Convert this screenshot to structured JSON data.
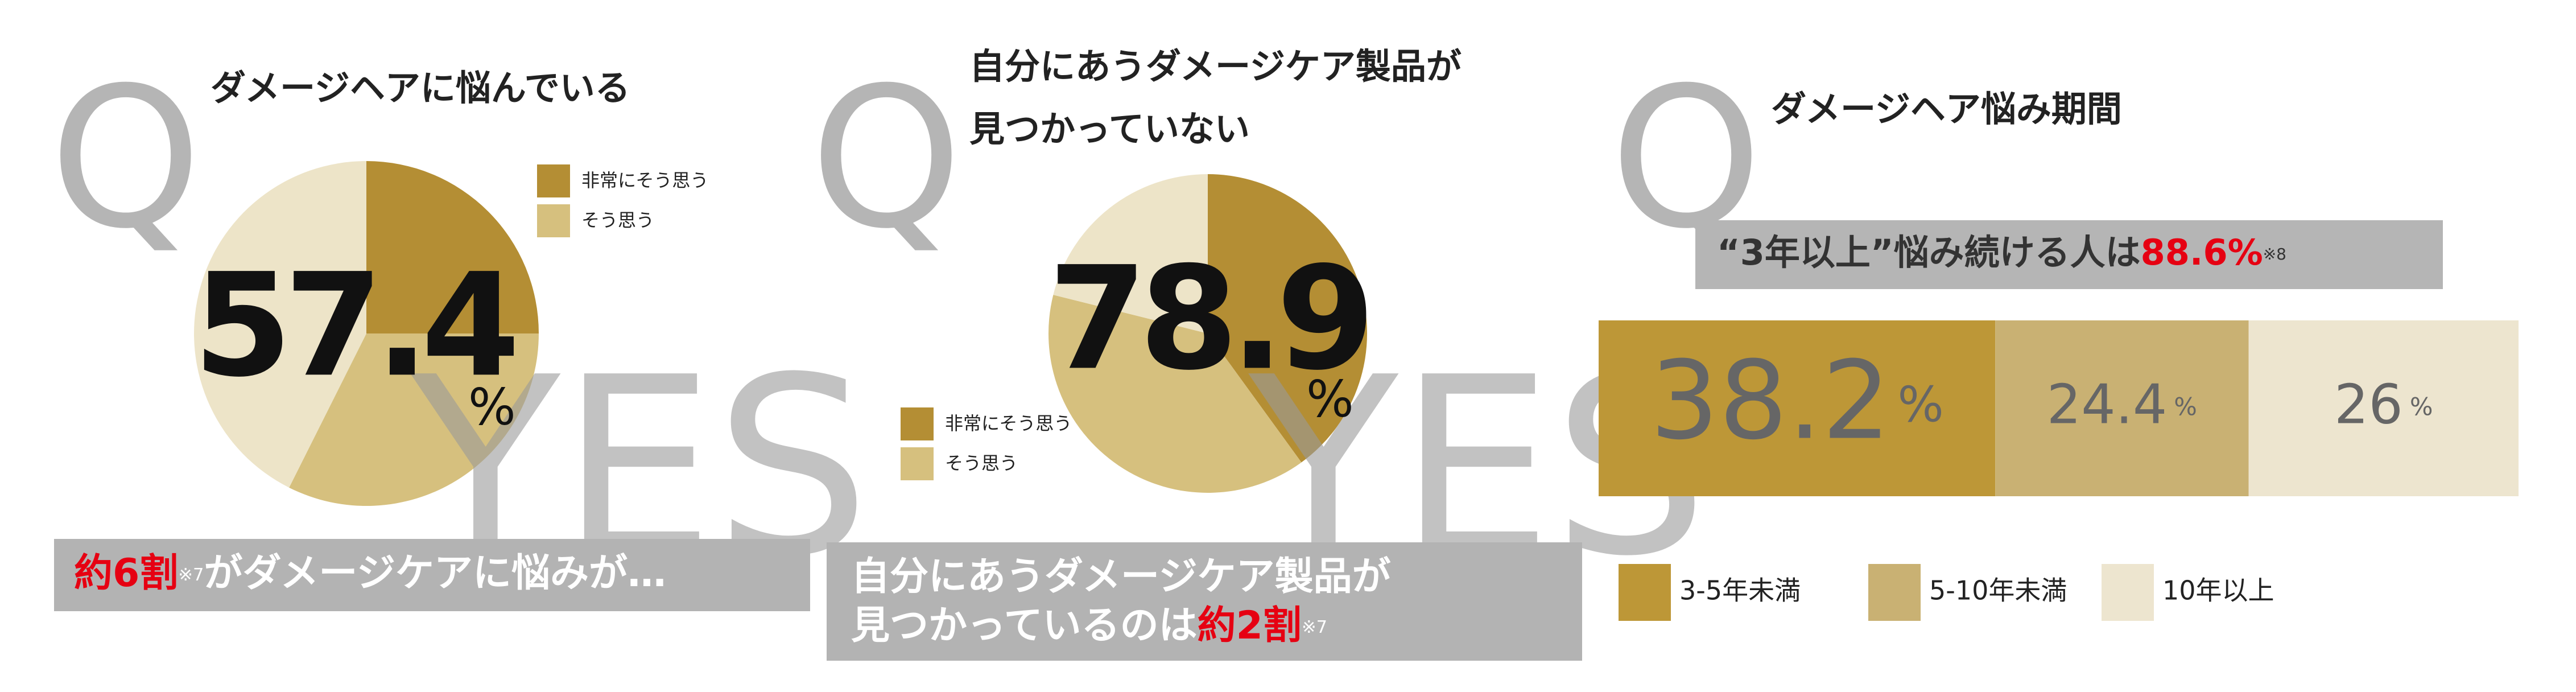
{
  "chart_data": [
    {
      "type": "pie",
      "q": "Q",
      "title_lines": [
        "ダメージヘアに悩んでいる"
      ],
      "categories": [
        "非常にそう思う",
        "そう思う",
        null
      ],
      "values": [
        25,
        32.4,
        42.6
      ],
      "colors": [
        "#b48e34",
        "#d6c07e",
        "#ede4c8"
      ],
      "center_value": 57.4,
      "unit": "%",
      "watermark": "YES",
      "legend": "top-right",
      "footer": [
        [
          {
            "text": "約6割",
            "color": "#e60012"
          },
          {
            "text": "※7",
            "note": true
          },
          {
            "text": "がダメージケアに悩みが…"
          }
        ]
      ]
    },
    {
      "type": "pie",
      "q": "Q",
      "title_lines": [
        "自分にあうダメージケア製品が",
        "見つかっていない"
      ],
      "categories": [
        "非常にそう思う",
        "そう思う",
        null
      ],
      "values": [
        40,
        38.9,
        21.1
      ],
      "colors": [
        "#b48e34",
        "#d6c07e",
        "#ede4c8"
      ],
      "center_value": 78.9,
      "unit": "%",
      "watermark": "YES",
      "legend": "bottom-left",
      "footer": [
        [
          {
            "text": "自分にあうダメージケア製品が"
          }
        ],
        [
          {
            "text": "見つかっているのは"
          },
          {
            "text": "約2割",
            "color": "#e60012"
          },
          {
            "text": "※7",
            "note": true
          }
        ]
      ]
    },
    {
      "type": "stacked-bar",
      "q": "Q",
      "title_lines": [
        "ダメージヘア悩み期間"
      ],
      "banner": [
        {
          "text": "“3年以上”悩み続ける人は"
        },
        {
          "text": "88.6%",
          "color": "#e60012"
        },
        {
          "text": "※8",
          "note": true
        }
      ],
      "series": [
        {
          "name": "3-5年未満",
          "color": "#bd9737",
          "values": [
            38.2
          ]
        },
        {
          "name": "5-10年未満",
          "color": "#c9b173",
          "values": [
            24.4
          ]
        },
        {
          "name": "10年以上",
          "color": "#ede5cf",
          "values": [
            26
          ]
        }
      ],
      "unit": "%",
      "legend": "bottom"
    }
  ]
}
